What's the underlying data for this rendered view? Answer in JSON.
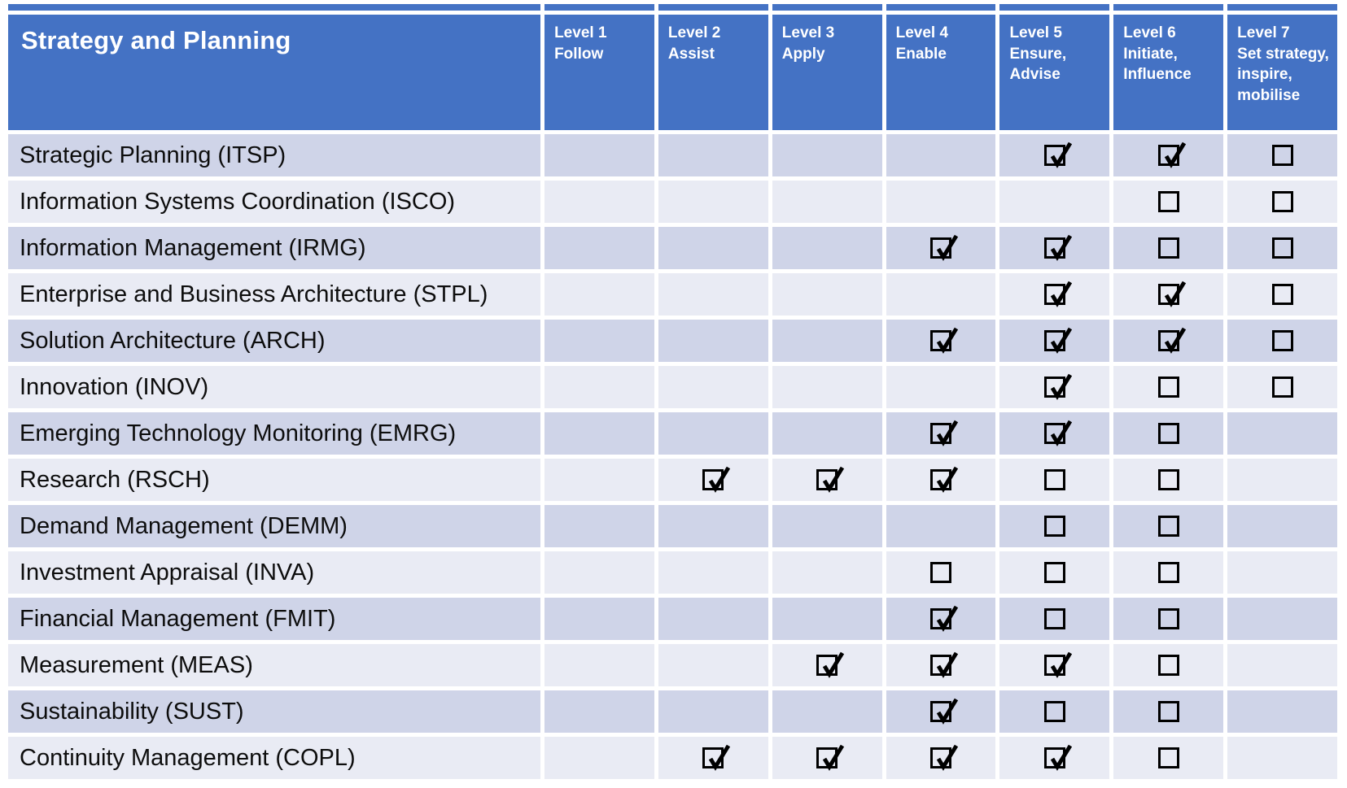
{
  "header": {
    "title": "Strategy and Planning",
    "levels": [
      {
        "level": "Level 1",
        "descriptor": "Follow"
      },
      {
        "level": "Level 2",
        "descriptor": "Assist"
      },
      {
        "level": "Level 3",
        "descriptor": "Apply"
      },
      {
        "level": "Level 4",
        "descriptor": "Enable"
      },
      {
        "level": "Level  5",
        "descriptor": "Ensure, Advise"
      },
      {
        "level": "Level 6",
        "descriptor": "Initiate, Influence"
      },
      {
        "level": "Level 7",
        "descriptor": "Set strategy, inspire, mobilise"
      }
    ]
  },
  "rows": [
    {
      "skill": "Strategic Planning (ITSP)",
      "cells": [
        "",
        "",
        "",
        "",
        "checked",
        "checked",
        "unchecked"
      ]
    },
    {
      "skill": "Information Systems Coordination (ISCO)",
      "cells": [
        "",
        "",
        "",
        "",
        "",
        "unchecked",
        "unchecked"
      ]
    },
    {
      "skill": "Information Management (IRMG)",
      "cells": [
        "",
        "",
        "",
        "checked",
        "checked",
        "unchecked",
        "unchecked"
      ]
    },
    {
      "skill": "Enterprise and Business Architecture (STPL)",
      "cells": [
        "",
        "",
        "",
        "",
        "checked",
        "checked",
        "unchecked"
      ]
    },
    {
      "skill": "Solution Architecture (ARCH)",
      "cells": [
        "",
        "",
        "",
        "checked",
        "checked",
        "checked",
        "unchecked"
      ]
    },
    {
      "skill": "Innovation (INOV)",
      "cells": [
        "",
        "",
        "",
        "",
        "checked",
        "unchecked",
        "unchecked"
      ]
    },
    {
      "skill": "Emerging Technology Monitoring (EMRG)",
      "cells": [
        "",
        "",
        "",
        "checked",
        "checked",
        "unchecked",
        ""
      ]
    },
    {
      "skill": "Research (RSCH)",
      "cells": [
        "",
        "checked",
        "checked",
        "checked",
        "unchecked",
        "unchecked",
        ""
      ]
    },
    {
      "skill": "Demand Management (DEMM)",
      "cells": [
        "",
        "",
        "",
        "",
        "unchecked",
        "unchecked",
        ""
      ]
    },
    {
      "skill": "Investment Appraisal (INVA)",
      "cells": [
        "",
        "",
        "",
        "unchecked",
        "unchecked",
        "unchecked",
        ""
      ]
    },
    {
      "skill": "Financial Management (FMIT)",
      "cells": [
        "",
        "",
        "",
        "checked",
        "unchecked",
        "unchecked",
        ""
      ]
    },
    {
      "skill": "Measurement (MEAS)",
      "cells": [
        "",
        "",
        "checked",
        "checked",
        "checked",
        "unchecked",
        ""
      ]
    },
    {
      "skill": "Sustainability (SUST)",
      "cells": [
        "",
        "",
        "",
        "checked",
        "unchecked",
        "unchecked",
        ""
      ]
    },
    {
      "skill": "Continuity Management (COPL)",
      "cells": [
        "",
        "checked",
        "checked",
        "checked",
        "checked",
        "unchecked",
        ""
      ]
    }
  ],
  "icons": {
    "checked": "checked-checkbox-icon",
    "unchecked": "unchecked-checkbox-icon"
  },
  "colors": {
    "header_bg": "#4472C4",
    "row_dark": "#CFD4E8",
    "row_light": "#E9EBF4",
    "checkbox": "#000000"
  }
}
